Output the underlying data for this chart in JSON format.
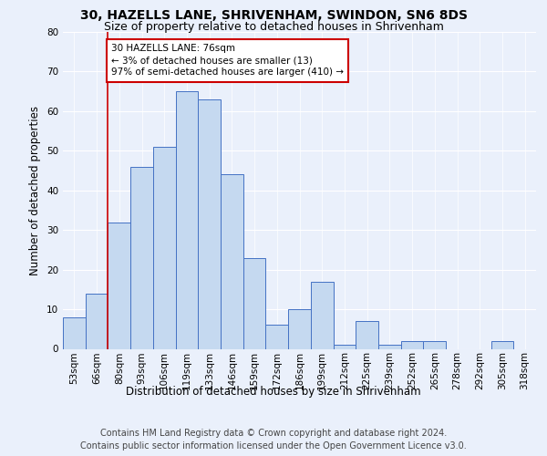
{
  "title_line1": "30, HAZELLS LANE, SHRIVENHAM, SWINDON, SN6 8DS",
  "title_line2": "Size of property relative to detached houses in Shrivenham",
  "xlabel": "Distribution of detached houses by size in Shrivenham",
  "ylabel": "Number of detached properties",
  "categories": [
    "53sqm",
    "66sqm",
    "80sqm",
    "93sqm",
    "106sqm",
    "119sqm",
    "133sqm",
    "146sqm",
    "159sqm",
    "172sqm",
    "186sqm",
    "199sqm",
    "212sqm",
    "225sqm",
    "239sqm",
    "252sqm",
    "265sqm",
    "278sqm",
    "292sqm",
    "305sqm",
    "318sqm"
  ],
  "values": [
    8,
    14,
    32,
    46,
    51,
    65,
    63,
    44,
    23,
    6,
    10,
    17,
    1,
    7,
    1,
    2,
    2,
    0,
    0,
    2,
    0
  ],
  "bar_color": "#c5d9f0",
  "bar_edge_color": "#4472c4",
  "ylim": [
    0,
    80
  ],
  "yticks": [
    0,
    10,
    20,
    30,
    40,
    50,
    60,
    70,
    80
  ],
  "property_line_x": 1.5,
  "annotation_text": "30 HAZELLS LANE: 76sqm\n← 3% of detached houses are smaller (13)\n97% of semi-detached houses are larger (410) →",
  "annotation_box_color": "#ffffff",
  "annotation_box_edge_color": "#cc0000",
  "property_line_color": "#cc0000",
  "footer_line1": "Contains HM Land Registry data © Crown copyright and database right 2024.",
  "footer_line2": "Contains public sector information licensed under the Open Government Licence v3.0.",
  "bg_color": "#eaf0fb",
  "plot_bg_color": "#eaf0fb",
  "grid_color": "#ffffff",
  "title_fontsize": 10,
  "subtitle_fontsize": 9,
  "label_fontsize": 8.5,
  "tick_fontsize": 7.5,
  "annotation_fontsize": 7.5,
  "footer_fontsize": 7
}
